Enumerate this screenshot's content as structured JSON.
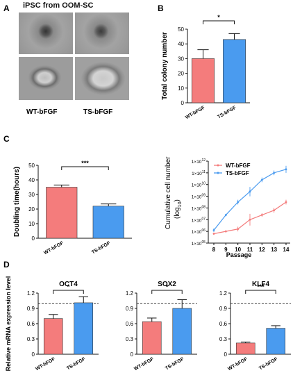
{
  "figure": {
    "panel_letters": [
      "A",
      "B",
      "C",
      "D"
    ],
    "panel_a": {
      "title": "iPSC from OOM-SC",
      "labels": [
        "WT-bFGF",
        "TS-bFGF"
      ],
      "bg_color": "#9a9a9a"
    }
  },
  "colors": {
    "wt": "#f47c7c",
    "ts": "#4a9bef",
    "axis": "#111111"
  },
  "chart_data": [
    {
      "id": "B",
      "type": "bar",
      "ylabel": "Total colony number",
      "categories": [
        "WT-bFGF",
        "TS-bFGF"
      ],
      "values": [
        30,
        43
      ],
      "errors": [
        6,
        4
      ],
      "ylim": [
        0,
        50
      ],
      "yticks": [
        "0",
        "10",
        "20",
        "30",
        "40",
        "50"
      ],
      "significance": "*"
    },
    {
      "id": "C1",
      "type": "bar",
      "ylabel": "Doubling time(hours)",
      "categories": [
        "WT-bFGF",
        "TS-bFGF"
      ],
      "values": [
        35,
        22
      ],
      "errors": [
        1.5,
        1.5
      ],
      "ylim": [
        0,
        50
      ],
      "yticks": [
        "0",
        "10",
        "20",
        "30",
        "40",
        "50"
      ],
      "significance": "***"
    },
    {
      "id": "C2",
      "type": "line",
      "xlabel": "Passage",
      "ylabel_main": "Cumulative cell number",
      "ylabel_unit": "(log",
      "ylabel_sub": "10",
      "ylabel_close": ")",
      "x": [
        8,
        9,
        10,
        11,
        12,
        13,
        14
      ],
      "xticks": [
        "8",
        "9",
        "10",
        "11",
        "12",
        "13",
        "14"
      ],
      "ylog_range": [
        5,
        12
      ],
      "ytick_base": "1×10",
      "ytick_exps": [
        "05",
        "06",
        "07",
        "08",
        "09",
        "10",
        "11",
        "12"
      ],
      "legend_position": "top-left",
      "series": [
        {
          "name": "WT-bFGF",
          "log_values": [
            5.8,
            6.0,
            6.2,
            7.0,
            7.4,
            7.8,
            8.5
          ],
          "log_errors": [
            0.1,
            0.1,
            0.2,
            0.5,
            0.15,
            0.2,
            0.2
          ]
        },
        {
          "name": "TS-bFGF",
          "log_values": [
            6.1,
            7.4,
            8.5,
            9.4,
            10.4,
            11.0,
            11.3
          ],
          "log_errors": [
            0.15,
            0.1,
            0.2,
            0.4,
            0.2,
            0.2,
            0.3
          ]
        }
      ]
    },
    {
      "id": "D1",
      "type": "bar",
      "title": "OCT4",
      "ylabel": "Relative mRNA expression level",
      "categories": [
        "WT-bFGF",
        "TS-bFGF"
      ],
      "values": [
        0.7,
        1.01
      ],
      "errors": [
        0.08,
        0.12
      ],
      "ylim": [
        0,
        1.2
      ],
      "yticks": [
        "0",
        "0.3",
        "0.6",
        "0.9",
        "1.2"
      ],
      "refline": 1.0,
      "significance": "*"
    },
    {
      "id": "D2",
      "type": "bar",
      "title": "SOX2",
      "categories": [
        "WT-bFGF",
        "TS-bFGF"
      ],
      "values": [
        0.64,
        0.9
      ],
      "errors": [
        0.07,
        0.17
      ],
      "ylim": [
        0,
        1.2
      ],
      "yticks": [
        "0",
        "0.3",
        "0.6",
        "0.9",
        "1.2"
      ],
      "refline": 1.0,
      "significance": "*"
    },
    {
      "id": "D3",
      "type": "bar",
      "title": "KLF4",
      "categories": [
        "WT-bFGF",
        "TS-bFGF"
      ],
      "values": [
        0.22,
        0.51
      ],
      "errors": [
        0.02,
        0.05
      ],
      "ylim": [
        0,
        1.2
      ],
      "yticks": [
        "0",
        "0.3",
        "0.6",
        "0.9",
        "1.2"
      ],
      "refline": 1.0,
      "significance": "***"
    }
  ]
}
